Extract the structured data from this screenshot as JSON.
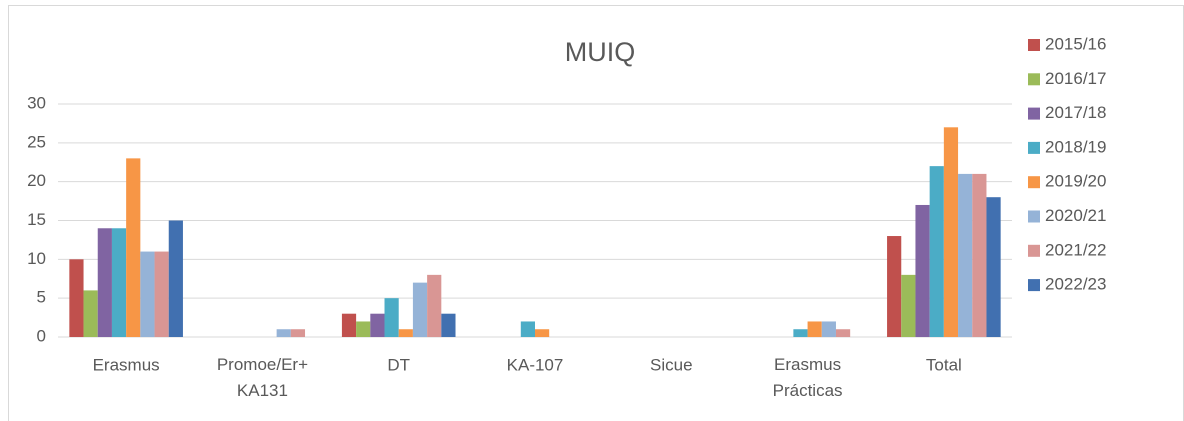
{
  "chart_data": {
    "type": "bar",
    "title": "MUIQ",
    "categories": [
      "Erasmus",
      "Promoe/Er+ KA131",
      "DT",
      "KA-107",
      "Sicue",
      "Erasmus Prácticas",
      "Total"
    ],
    "series": [
      {
        "name": "2015/16",
        "color": "#c0504d",
        "values": [
          10,
          0,
          3,
          0,
          0,
          0,
          13
        ]
      },
      {
        "name": "2016/17",
        "color": "#9bbb59",
        "values": [
          6,
          0,
          2,
          0,
          0,
          0,
          8
        ]
      },
      {
        "name": "2017/18",
        "color": "#8064a2",
        "values": [
          14,
          0,
          3,
          0,
          0,
          0,
          17
        ]
      },
      {
        "name": "2018/19",
        "color": "#4bacc6",
        "values": [
          14,
          0,
          5,
          2,
          0,
          1,
          22
        ]
      },
      {
        "name": "2019/20",
        "color": "#f79646",
        "values": [
          23,
          0,
          1,
          1,
          0,
          2,
          27
        ]
      },
      {
        "name": "2020/21",
        "color": "#95b3d7",
        "values": [
          11,
          1,
          7,
          0,
          0,
          2,
          21
        ]
      },
      {
        "name": "2021/22",
        "color": "#d99694",
        "values": [
          11,
          1,
          8,
          0,
          0,
          1,
          21
        ]
      },
      {
        "name": "2022/23",
        "color": "#4170b0",
        "values": [
          15,
          0,
          3,
          0,
          0,
          0,
          18
        ]
      }
    ],
    "ylim": [
      0,
      30
    ],
    "yticks": [
      0,
      5,
      10,
      15,
      20,
      25,
      30
    ],
    "grid": true,
    "legend": "right"
  }
}
